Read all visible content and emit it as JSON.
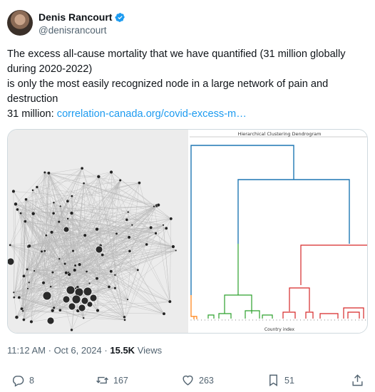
{
  "author": {
    "name": "Denis Rancourt",
    "handle": "@denisrancourt",
    "verified_icon": "verified-badge-icon",
    "badge_color": "#1d9bf0"
  },
  "post": {
    "lines": [
      "The excess all-cause mortality that we have quantified (31 million globally",
      "during 2020-2022)",
      "is only the most easily recognized node in a large network of pain and",
      "destruction"
    ],
    "link_prefix": "31 million: ",
    "link_text": "correlation-canada.org/covid-excess-m…",
    "link_color": "#1d9bf0"
  },
  "media": {
    "dendrogram_title": "Hierarchical Clustering Dendrogram",
    "dendrogram_xlabel": "Country index",
    "cluster_colors": [
      "#ff7f0e",
      "#2ca02c",
      "#d62728",
      "#1f77b4"
    ]
  },
  "meta": {
    "time": "11:12 AM",
    "sep": "·",
    "date": "Oct 6, 2024",
    "views_count": "15.5K",
    "views_label": "Views"
  },
  "actions": {
    "replies": "8",
    "reposts": "167",
    "likes": "263",
    "bookmarks": "51"
  }
}
